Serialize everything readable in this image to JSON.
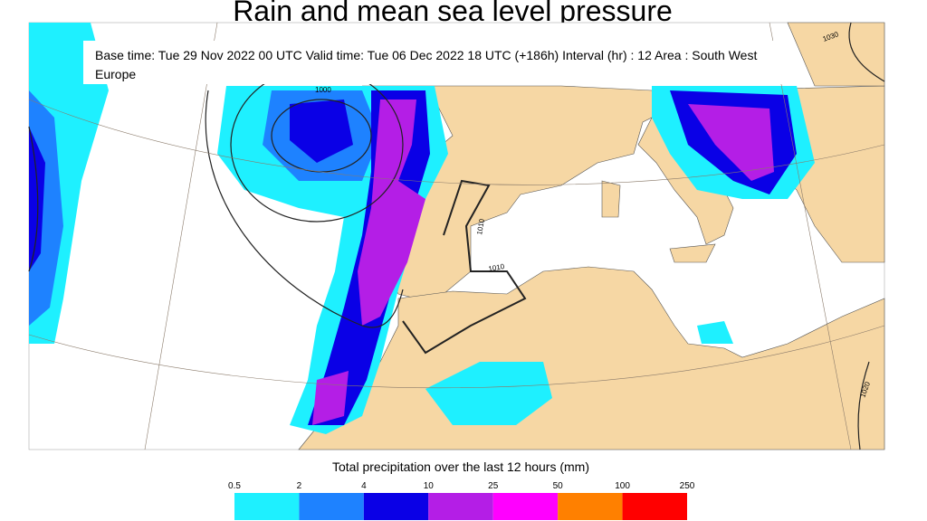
{
  "title": "Rain and mean sea level pressure",
  "subtitle": "Base time: Tue 29 Nov 2022 00 UTC Valid time: Tue 06 Dec 2022 18 UTC (+186h) Interval (hr) : 12 Area : South West Europe",
  "legend": {
    "title": "Total precipitation over the last 12 hours (mm)",
    "ticks": [
      0.5,
      2,
      4,
      10,
      25,
      50,
      100,
      250
    ],
    "colors": [
      "#1ef0ff",
      "#1e82ff",
      "#0a00e6",
      "#b41ee6",
      "#ff00ff",
      "#ff8000",
      "#ff0000"
    ]
  },
  "isobar_labels": [
    1000,
    1010,
    1010,
    1020,
    1030
  ]
}
